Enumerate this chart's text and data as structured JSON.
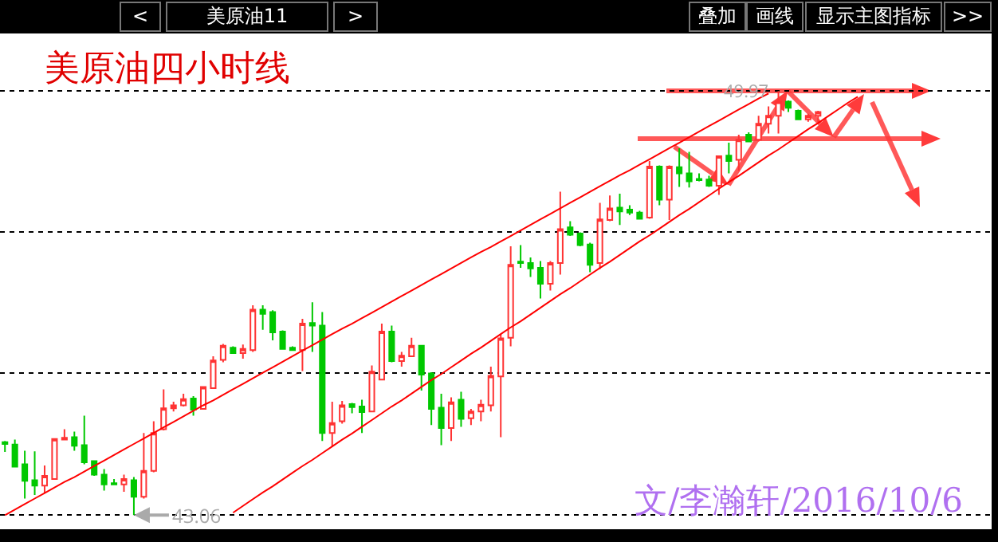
{
  "chart_data": {
    "type": "candlestick",
    "title": "美原油四小时线",
    "annotations": [
      "<",
      "美原油11",
      ">",
      "叠加",
      "画线",
      "显示主图指标",
      ">>",
      "49.97",
      "43.06",
      "文/李瀚轩/2016/10/6"
    ],
    "categories": [
      null,
      null,
      null,
      null,
      null,
      null,
      null,
      null,
      null,
      null,
      null,
      null,
      null,
      null,
      null,
      null,
      null,
      null,
      null,
      null,
      null,
      null,
      null,
      null,
      null,
      null,
      null,
      null,
      null,
      null,
      null,
      null,
      null,
      null,
      null,
      null,
      null,
      null,
      null,
      null,
      null,
      null,
      null,
      null,
      null,
      null,
      null,
      null,
      null,
      null,
      null,
      null,
      null,
      null,
      null,
      null,
      null,
      null,
      null,
      null,
      null,
      null,
      null,
      null,
      null,
      null,
      null,
      null,
      null,
      null,
      null,
      null,
      null,
      null,
      null,
      null,
      null,
      null,
      null,
      null,
      null,
      null,
      null,
      null,
      null,
      null,
      null,
      null,
      null,
      null,
      null,
      null,
      null,
      null,
      null,
      null,
      null,
      null,
      null,
      null
    ],
    "ylim": [
      42.83,
      50.91
    ],
    "yticks": [
      {
        "value": 43.06,
        "label": null
      },
      {
        "value": 45.38,
        "label": null
      },
      {
        "value": 47.68,
        "label": null
      },
      {
        "value": 49.97,
        "label": null
      }
    ],
    "grid": "y",
    "series": [
      {
        "ohlc": [
          [
            44.25,
            44.27,
            44.09,
            44.22
          ],
          [
            44.21,
            44.29,
            43.85,
            43.85
          ],
          [
            43.89,
            44.11,
            43.33,
            43.62
          ],
          [
            43.63,
            44.1,
            43.39,
            43.54
          ],
          [
            43.54,
            43.87,
            43.42,
            43.7
          ],
          [
            43.65,
            44.31,
            43.65,
            44.3
          ],
          [
            44.29,
            44.46,
            44.29,
            44.32
          ],
          [
            44.33,
            44.42,
            44.11,
            44.19
          ],
          [
            44.2,
            44.68,
            43.89,
            43.92
          ],
          [
            43.94,
            43.95,
            43.7,
            43.72
          ],
          [
            43.72,
            43.81,
            43.46,
            43.56
          ],
          [
            43.58,
            43.65,
            43.55,
            43.56
          ],
          [
            43.56,
            43.72,
            43.44,
            43.65
          ],
          [
            43.63,
            43.68,
            43.06,
            43.36
          ],
          [
            43.36,
            44.4,
            43.33,
            43.78
          ],
          [
            43.78,
            44.59,
            43.76,
            44.4
          ],
          [
            44.46,
            45.11,
            44.44,
            44.8
          ],
          [
            44.8,
            44.91,
            44.75,
            44.85
          ],
          [
            44.85,
            45.04,
            44.83,
            44.95
          ],
          [
            44.96,
            45.0,
            44.68,
            44.78
          ],
          [
            44.79,
            45.15,
            44.78,
            45.15
          ],
          [
            45.13,
            45.65,
            45.13,
            45.58
          ],
          [
            45.59,
            45.85,
            45.55,
            45.82
          ],
          [
            45.79,
            45.81,
            45.7,
            45.7
          ],
          [
            45.7,
            45.84,
            45.61,
            45.77
          ],
          [
            45.75,
            46.48,
            45.72,
            46.41
          ],
          [
            46.41,
            46.48,
            46.08,
            46.34
          ],
          [
            46.37,
            46.4,
            45.91,
            46.04
          ],
          [
            46.05,
            46.07,
            45.76,
            45.77
          ],
          [
            45.79,
            45.81,
            45.74,
            45.75
          ],
          [
            45.75,
            46.26,
            45.41,
            46.18
          ],
          [
            46.19,
            46.53,
            45.72,
            46.15
          ],
          [
            46.15,
            46.37,
            44.27,
            44.4
          ],
          [
            44.4,
            44.91,
            44.18,
            44.56
          ],
          [
            44.59,
            44.92,
            44.55,
            44.85
          ],
          [
            44.87,
            44.89,
            44.72,
            44.82
          ],
          [
            44.83,
            44.94,
            44.4,
            44.74
          ],
          [
            44.75,
            45.5,
            44.75,
            45.4
          ],
          [
            45.27,
            46.18,
            45.27,
            46.05
          ],
          [
            46.05,
            46.15,
            45.55,
            45.57
          ],
          [
            45.57,
            45.72,
            45.48,
            45.66
          ],
          [
            45.65,
            45.95,
            45.65,
            45.82
          ],
          [
            45.82,
            45.83,
            45.09,
            45.35
          ],
          [
            45.37,
            45.39,
            44.53,
            44.79
          ],
          [
            44.81,
            45.04,
            44.2,
            44.48
          ],
          [
            44.48,
            44.98,
            44.27,
            44.9
          ],
          [
            44.94,
            45.07,
            44.5,
            44.63
          ],
          [
            44.64,
            44.79,
            44.53,
            44.75
          ],
          [
            44.75,
            44.94,
            44.59,
            44.86
          ],
          [
            44.85,
            45.48,
            44.75,
            45.33
          ],
          [
            45.32,
            46.01,
            44.33,
            45.94
          ],
          [
            45.95,
            47.44,
            45.81,
            47.14
          ],
          [
            47.19,
            47.46,
            47.09,
            47.17
          ],
          [
            47.17,
            47.26,
            46.94,
            47.08
          ],
          [
            47.09,
            47.2,
            46.59,
            46.83
          ],
          [
            46.83,
            47.2,
            46.72,
            47.17
          ],
          [
            47.17,
            48.33,
            46.98,
            47.72
          ],
          [
            47.75,
            47.85,
            47.61,
            47.63
          ],
          [
            47.65,
            47.67,
            47.44,
            47.46
          ],
          [
            47.47,
            47.5,
            47.02,
            47.14
          ],
          [
            47.17,
            48.15,
            47.07,
            47.88
          ],
          [
            47.87,
            48.27,
            47.85,
            48.06
          ],
          [
            48.07,
            48.3,
            47.79,
            48.01
          ],
          [
            48.04,
            48.11,
            47.95,
            47.99
          ],
          [
            47.99,
            48.02,
            47.89,
            47.89
          ],
          [
            47.91,
            48.83,
            47.89,
            48.74
          ],
          [
            48.74,
            48.76,
            48.11,
            48.2
          ],
          [
            48.2,
            48.76,
            47.87,
            48.74
          ],
          [
            48.73,
            49.04,
            48.41,
            48.63
          ],
          [
            48.63,
            48.98,
            48.4,
            48.5
          ],
          [
            48.54,
            48.63,
            48.5,
            48.52
          ],
          [
            48.53,
            48.59,
            48.41,
            48.43
          ],
          [
            48.43,
            48.92,
            48.28,
            48.91
          ],
          [
            48.92,
            49.13,
            48.63,
            48.83
          ],
          [
            48.85,
            49.26,
            48.67,
            49.18
          ],
          [
            49.26,
            49.3,
            49.15,
            49.15
          ],
          [
            49.18,
            49.57,
            49.15,
            49.44
          ],
          [
            49.44,
            49.72,
            49.28,
            49.57
          ],
          [
            49.57,
            49.97,
            49.28,
            49.8
          ],
          [
            49.8,
            49.82,
            49.63,
            49.7
          ],
          [
            49.65,
            49.67,
            49.5,
            49.51
          ],
          [
            49.51,
            49.6,
            49.47,
            49.57
          ],
          [
            49.57,
            49.65,
            49.46,
            49.63
          ],
          null,
          null,
          null,
          null,
          null,
          null,
          null,
          null,
          null,
          null,
          null,
          null,
          null,
          null,
          null,
          null,
          null
        ],
        "colors": [
          "#00c800",
          "#00c800",
          "#00c800",
          "#00c800",
          "#ff3333",
          "#ff3333",
          "#ff3333",
          "#00c800",
          "#00c800",
          "#00c800",
          "#00c800",
          "#00c800",
          "#ff3333",
          "#00c800",
          "#ff3333",
          "#ff3333",
          "#ff3333",
          "#ff3333",
          "#ff3333",
          "#00c800",
          "#ff3333",
          "#ff3333",
          "#ff3333",
          "#00c800",
          "#ff3333",
          "#ff3333",
          "#00c800",
          "#00c800",
          "#00c800",
          "#00c800",
          "#ff3333",
          "#00c800",
          "#00c800",
          "#ff3333",
          "#ff3333",
          "#00c800",
          "#00c800",
          "#ff3333",
          "#ff3333",
          "#00c800",
          "#ff3333",
          "#ff3333",
          "#00c800",
          "#00c800",
          "#00c800",
          "#ff3333",
          "#00c800",
          "#ff3333",
          "#ff3333",
          "#ff3333",
          "#ff3333",
          "#ff3333",
          "#00c800",
          "#00c800",
          "#00c800",
          "#ff3333",
          "#ff3333",
          "#00c800",
          "#00c800",
          "#00c800",
          "#ff3333",
          "#ff3333",
          "#00c800",
          "#00c800",
          "#00c800",
          "#ff3333",
          "#00c800",
          "#ff3333",
          "#00c800",
          "#00c800",
          "#00c800",
          "#00c800",
          "#ff3333",
          "#00c800",
          "#ff3333",
          "#00c800",
          "#ff3333",
          "#ff3333",
          "#ff3333",
          "#00c800",
          "#00c800",
          "#ff3333",
          "#ff3333",
          null,
          null,
          null,
          null,
          null,
          null,
          null,
          null,
          null,
          null,
          null,
          null,
          null,
          null,
          null,
          null,
          null
        ]
      },
      {
        "type": "line",
        "color": "#ff0000",
        "values": [
          43.06,
          43.15,
          43.24,
          43.33,
          43.42,
          43.51,
          43.6,
          43.68,
          43.77,
          43.86,
          43.95,
          44.04,
          44.13,
          44.22,
          44.31,
          44.4,
          44.49,
          44.58,
          44.67,
          44.76,
          44.85,
          44.93,
          45.02,
          45.11,
          45.2,
          45.29,
          45.38,
          45.47,
          45.56,
          45.65,
          45.74,
          45.83,
          45.92,
          46.01,
          46.1,
          46.18,
          46.27,
          46.36,
          46.45,
          46.54,
          46.63,
          46.72,
          46.81,
          46.9,
          46.99,
          47.08,
          47.17,
          47.26,
          47.35,
          47.43,
          47.52,
          47.61,
          47.7,
          47.79,
          47.88,
          47.97,
          48.06,
          48.15,
          48.24,
          48.33,
          48.42,
          48.51,
          48.6,
          48.68,
          48.77,
          48.86,
          48.95,
          49.04,
          49.13,
          49.22,
          49.31,
          49.4,
          49.49,
          49.58,
          49.67,
          49.76,
          49.85,
          49.93,
          null,
          null,
          null,
          null,
          null,
          null,
          null,
          null,
          null,
          null,
          null,
          null,
          null,
          null,
          null,
          null,
          null,
          null,
          null,
          null,
          null,
          null
        ]
      },
      {
        "type": "line",
        "color": "#ff0000",
        "values": [
          null,
          null,
          null,
          null,
          null,
          null,
          null,
          null,
          null,
          null,
          null,
          null,
          null,
          null,
          null,
          null,
          null,
          null,
          null,
          null,
          null,
          null,
          null,
          43.1,
          43.21,
          43.32,
          43.43,
          43.53,
          43.64,
          43.75,
          43.86,
          43.96,
          44.07,
          44.18,
          44.29,
          44.39,
          44.5,
          44.61,
          44.72,
          44.83,
          44.93,
          45.04,
          45.15,
          45.26,
          45.36,
          45.47,
          45.58,
          45.69,
          45.79,
          45.9,
          46.01,
          46.12,
          46.22,
          46.33,
          46.44,
          46.55,
          46.66,
          46.76,
          46.87,
          46.98,
          47.09,
          47.19,
          47.3,
          47.41,
          47.52,
          47.62,
          47.73,
          47.84,
          47.95,
          48.05,
          48.16,
          48.27,
          48.38,
          48.49,
          48.59,
          48.7,
          48.81,
          48.92,
          49.02,
          49.13,
          49.24,
          49.35,
          49.45,
          49.56,
          49.67,
          49.78,
          49.88,
          null,
          null,
          null,
          null,
          null,
          null,
          null,
          null,
          null,
          null,
          null,
          null,
          null
        ]
      }
    ]
  }
}
